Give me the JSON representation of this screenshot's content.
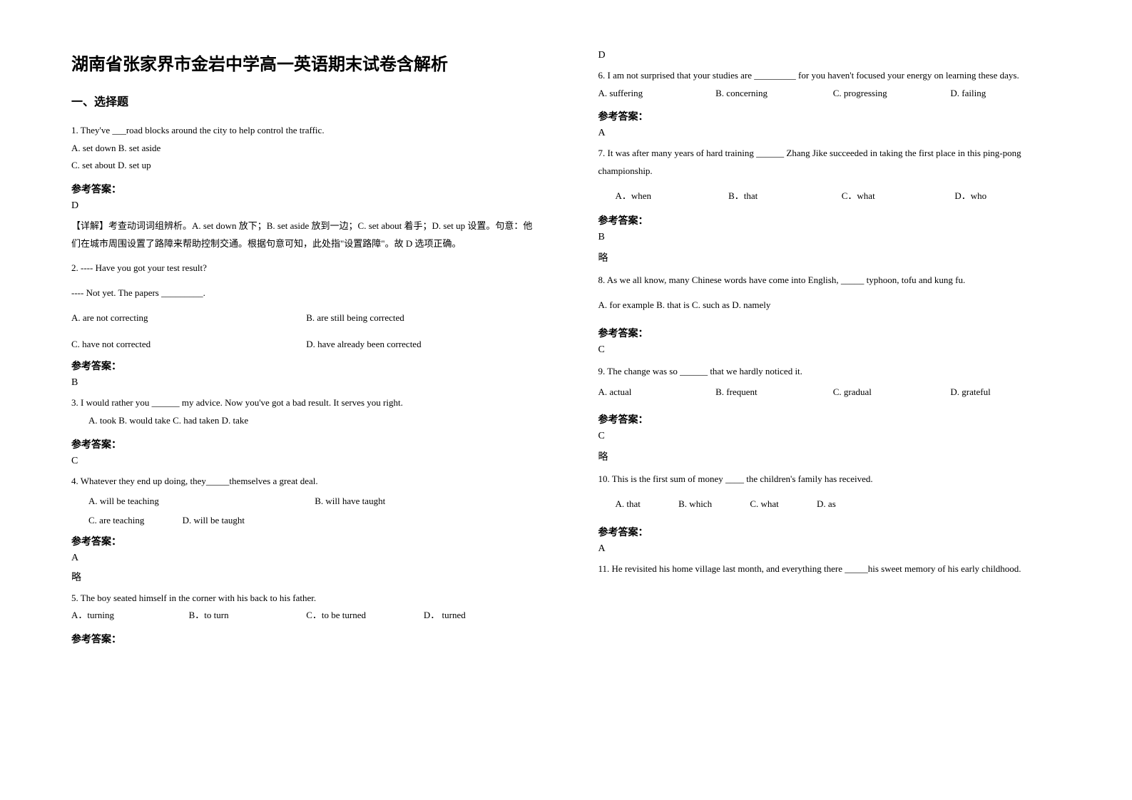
{
  "title": "湖南省张家界市金岩中学高一英语期末试卷含解析",
  "section1": "一、选择题",
  "answer_label": "参考答案：",
  "lue": "略",
  "q1": {
    "stem": "1. They've ___road blocks around the city to help control the traffic.",
    "optA": "A. set down   B. set aside",
    "optC": "C. set about   D. set up",
    "ans": "D",
    "expl": "【详解】考查动词词组辨析。A. set down 放下；B. set aside 放到一边；C. set about 着手；D. set up 设置。句意：他们在城市周围设置了路障来帮助控制交通。根据句意可知，此处指\"设置路障\"。故 D 选项正确。"
  },
  "q2": {
    "stem1": "2. ---- Have you got your test result?",
    "stem2": "---- Not yet. The papers _________.",
    "a": "A. are not correcting",
    "b": "B. are still being corrected",
    "c": "C. have not corrected",
    "d": "D. have already been corrected",
    "ans": "B"
  },
  "q3": {
    "stem": "3. I would rather you ______ my advice. Now you've got a bad result. It serves you right.",
    "opts": "A. took             B. would take   C. had taken                  D. take",
    "ans": "C"
  },
  "q4": {
    "stem": "4. Whatever they end up doing, they_____themselves a great deal.",
    "a": "A. will be teaching",
    "b": "B. will have taught",
    "c": "C. are teaching",
    "d": "D. will be taught",
    "ans": "A"
  },
  "q5": {
    "stem": "5. The boy seated himself in the corner with his back            to his father.",
    "a": "A．turning",
    "b": "B．to turn",
    "c": "C．to be turned",
    "d": "D． turned",
    "ans": "D"
  },
  "q6": {
    "stem": "6. I am not surprised that your studies are _________ for you haven't focused your energy on learning these days.",
    "a": "A. suffering",
    "b": "B. concerning",
    "c": "C. progressing",
    "d": "D. failing",
    "ans": "A"
  },
  "q7": {
    "stem": "7. It was after many years of hard training ______ Zhang Jike succeeded in taking the first place in this ping-pong championship.",
    "a": "A．when",
    "b": "B．that",
    "c": "C．what",
    "d": "D．who",
    "ans": "B"
  },
  "q8": {
    "stem": "8. As we all know, many Chinese words have come into English, _____ typhoon, tofu and kung fu.",
    "opts": "A. for example   B. that is    C. such as   D. namely",
    "ans": "C"
  },
  "q9": {
    "stem": "9. The change was so ______ that we hardly noticed it.",
    "a": "A. actual",
    "b": "B. frequent",
    "c": "C. gradual",
    "d": "D. grateful",
    "ans": "C"
  },
  "q10": {
    "stem": "10.  This is the first sum of money ____ the children's family has received.",
    "a": "A. that",
    "b": "B. which",
    "c": "C. what",
    "d": "D. as",
    "ans": "A"
  },
  "q11": {
    "stem": "11. He revisited his home village last month, and everything there _____his sweet memory of his early childhood."
  }
}
